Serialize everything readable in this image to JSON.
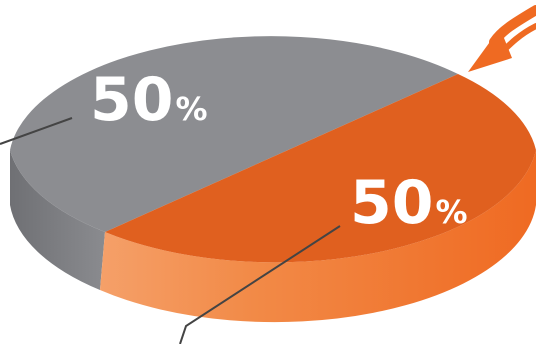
{
  "chart_data": {
    "type": "pie",
    "style": "3d-tilted",
    "slices": [
      {
        "label_value": "50",
        "label_unit": "%",
        "value": 50
      },
      {
        "label_value": "50",
        "label_unit": "%",
        "value": 50
      }
    ]
  },
  "colors": {
    "grey_top": "#8c8d91",
    "grey_side": "#7a7b7f",
    "orange_top": "#e0601f",
    "orange_side": "#f07a36",
    "orange_side_light": "#f59a5e",
    "leader_line": "#444444"
  },
  "icons": {
    "arrow": "curved-pointer-arrow-icon"
  }
}
